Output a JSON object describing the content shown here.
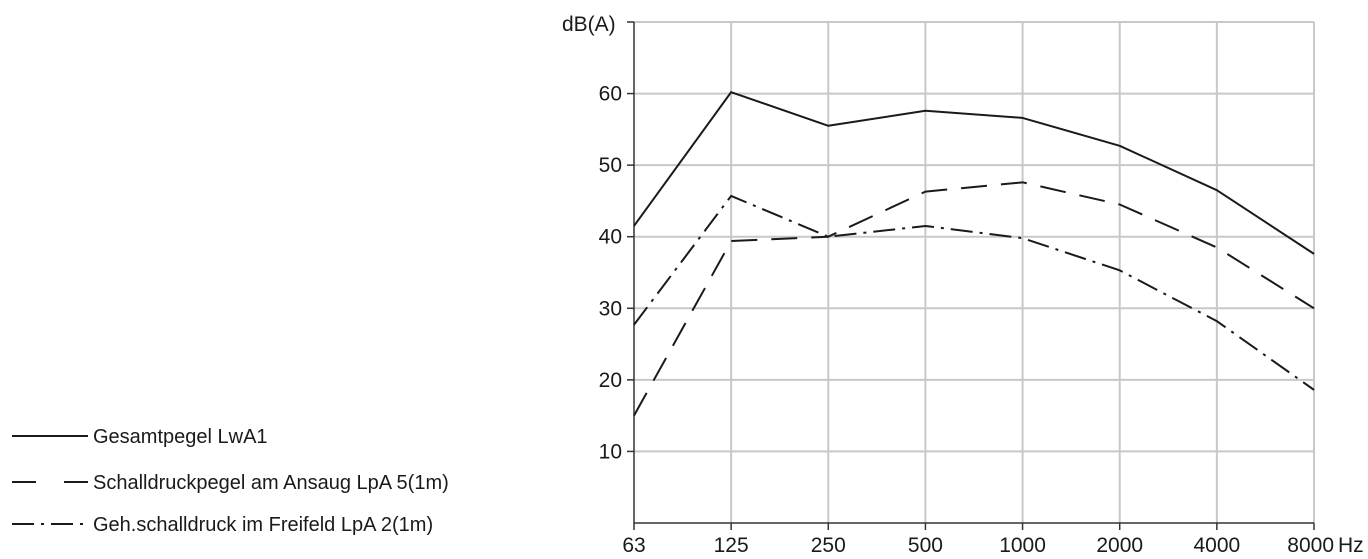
{
  "chart_data": {
    "type": "line",
    "ylabel": "dB(A)",
    "xunit": "Hz",
    "categories": [
      "63",
      "125",
      "250",
      "500",
      "1000",
      "2000",
      "4000",
      "8000"
    ],
    "yticks": [
      "10",
      "20",
      "30",
      "40",
      "50",
      "60"
    ],
    "ylim": [
      0,
      70
    ],
    "grid": true,
    "legend_position": "bottom-left",
    "series": [
      {
        "name": "Gesamtpegel LwA1",
        "style": "solid",
        "values": [
          41.5,
          60.2,
          55.5,
          57.6,
          56.6,
          52.7,
          46.5,
          37.6
        ]
      },
      {
        "name": "Schalldruckpegel am Ansaug LpA 5(1m)",
        "style": "dashed",
        "values": [
          15.0,
          39.4,
          40.0,
          46.3,
          47.6,
          44.5,
          38.5,
          30.0
        ]
      },
      {
        "name": "Geh.schalldruck im Freifeld LpA 2(1m)",
        "style": "dashdot",
        "values": [
          27.7,
          45.7,
          40.0,
          41.5,
          39.8,
          35.3,
          28.2,
          18.6
        ]
      }
    ],
    "colors": {
      "line": "#1a1a1a",
      "grid": "#c8c8c8",
      "axis": "#333333"
    }
  }
}
